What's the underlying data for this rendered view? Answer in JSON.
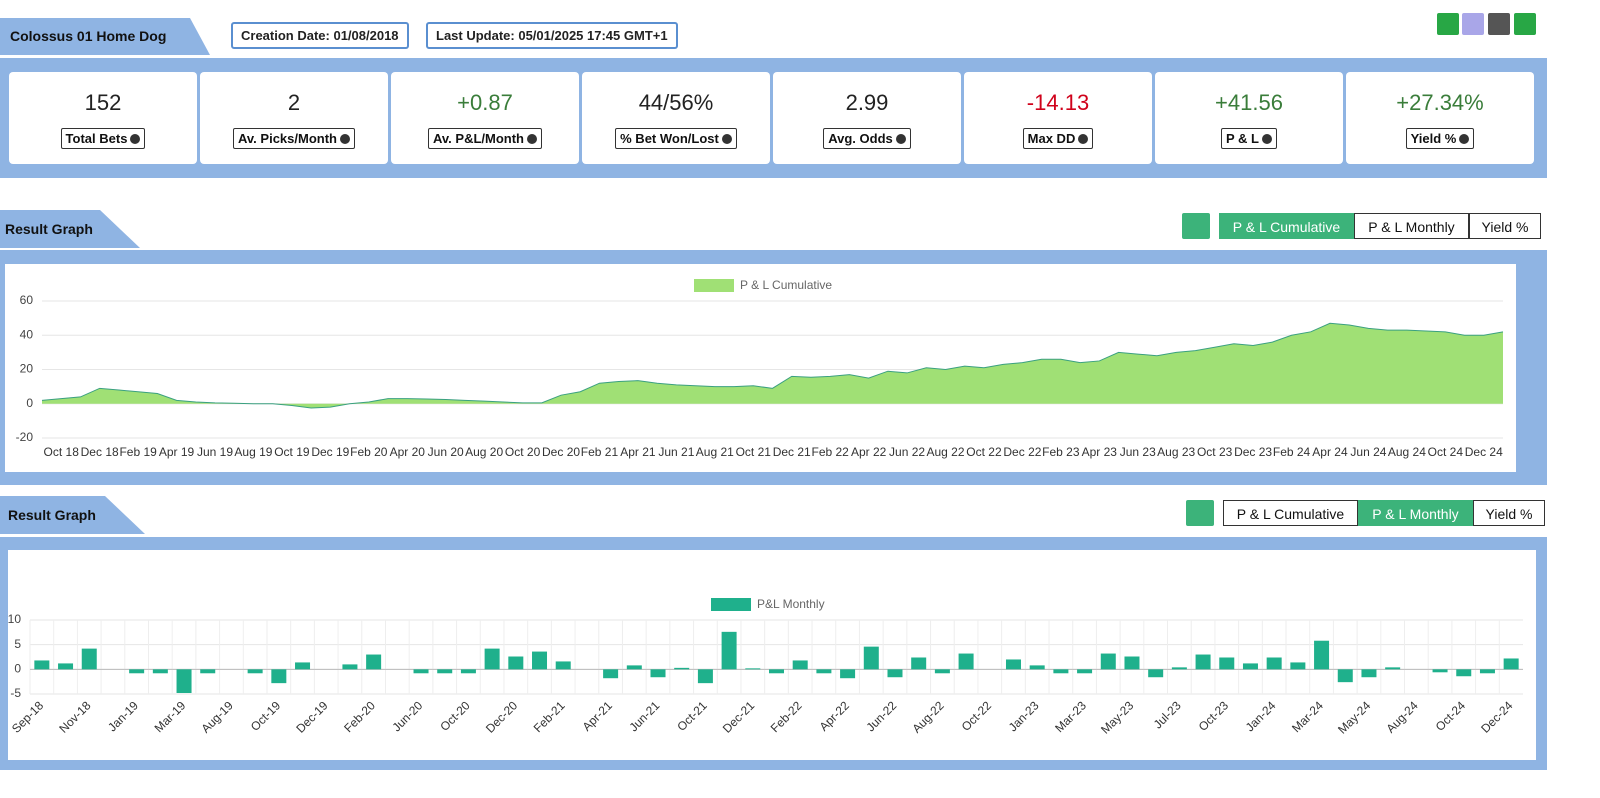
{
  "header": {
    "title": "Colossus 01 Home Dog",
    "creation": "Creation Date: 01/08/2018",
    "update": "Last Update: 05/01/2025 17:45 GMT+1"
  },
  "stats": [
    {
      "value": "152",
      "label": "Total Bets"
    },
    {
      "value": "2",
      "label": "Av. Picks/Month"
    },
    {
      "value": "+0.87",
      "label": "Av. P&L/Month"
    },
    {
      "value": "44/56%",
      "label": "% Bet Won/Lost"
    },
    {
      "value": "2.99",
      "label": "Avg. Odds"
    },
    {
      "value": "-14.13",
      "label": "Max DD"
    },
    {
      "value": "+41.56",
      "label": "P & L"
    },
    {
      "value": "+27.34%",
      "label": "Yield %"
    }
  ],
  "sections": [
    {
      "title": "Result Graph",
      "buttons": [
        "P & L Cumulative",
        "P & L Monthly",
        "Yield %"
      ],
      "active": 0
    },
    {
      "title": "Result Graph",
      "buttons": [
        "P & L Cumulative",
        "P & L Monthly",
        "Yield %"
      ],
      "active": 1
    }
  ],
  "chart_data": [
    {
      "type": "area",
      "categories": [
        null,
        "Oct 18",
        null,
        "Dec 18",
        null,
        "Feb 19",
        null,
        "Apr 19",
        null,
        "Jun 19",
        null,
        "Aug 19",
        null,
        "Oct 19",
        null,
        "Dec 19",
        null,
        "Feb 20",
        null,
        "Apr 20",
        null,
        "Jun 20",
        null,
        "Aug 20",
        null,
        "Oct 20",
        null,
        "Dec 20",
        null,
        "Feb 21",
        null,
        "Apr 21",
        null,
        "Jun 21",
        null,
        "Aug 21",
        null,
        "Oct 21",
        null,
        "Dec 21",
        null,
        "Feb 22",
        null,
        "Apr 22",
        null,
        "Jun 22",
        null,
        "Aug 22",
        null,
        "Oct 22",
        null,
        "Dec 22",
        null,
        "Feb 23",
        null,
        "Apr 23",
        null,
        "Jun 23",
        null,
        "Aug 23",
        null,
        "Oct 23",
        null,
        "Dec 23",
        null,
        "Feb 24",
        null,
        "Apr 24",
        null,
        "Jun 24",
        null,
        "Aug 24",
        null,
        "Oct 24",
        null,
        "Dec 24",
        null
      ],
      "series": [
        {
          "name": "P & L Cumulative",
          "color": "#a0e075",
          "values": [
            2,
            3,
            4,
            9,
            8,
            7,
            6,
            2,
            1,
            0.5,
            0.3,
            0,
            0,
            -1,
            -2.5,
            -2,
            0,
            1,
            3,
            3,
            2.8,
            2.5,
            2,
            1.5,
            1,
            0.5,
            0.5,
            5,
            7,
            12,
            13,
            13.5,
            12,
            11,
            10.5,
            10,
            10,
            10.5,
            9,
            16,
            15.5,
            16,
            17,
            15,
            19,
            18,
            21,
            20,
            22,
            21,
            23,
            24,
            26,
            26,
            24,
            25,
            30,
            29,
            28,
            30,
            31,
            33,
            35,
            34,
            36,
            40,
            42,
            47,
            46,
            44,
            43,
            43,
            42.5,
            42,
            40,
            40,
            42
          ]
        }
      ],
      "ylim": [
        -20,
        60
      ],
      "yticks": [
        -20,
        0,
        20,
        40,
        60
      ],
      "grid": true
    },
    {
      "type": "bar",
      "categories": [
        "Sep-18",
        null,
        "Nov-18",
        null,
        "Jan-19",
        null,
        "Mar-19",
        null,
        "Aug-19",
        null,
        "Oct-19",
        null,
        "Dec-19",
        null,
        "Feb-20",
        null,
        "Jun-20",
        null,
        "Oct-20",
        null,
        "Dec-20",
        null,
        "Feb-21",
        null,
        "Apr-21",
        null,
        "Jun-21",
        null,
        "Oct-21",
        null,
        "Dec-21",
        null,
        "Feb-22",
        null,
        "Apr-22",
        null,
        "Jun-22",
        null,
        "Aug-22",
        null,
        "Oct-22",
        null,
        "Jan-23",
        null,
        "Mar-23",
        null,
        "May-23",
        null,
        "Jul-23",
        null,
        "Oct-23",
        null,
        "Jan-24",
        null,
        "Mar-24",
        null,
        "May-24",
        null,
        "Aug-24",
        null,
        "Oct-24",
        null,
        "Dec-24"
      ],
      "series": [
        {
          "name": "P&L Monthly",
          "color": "#1fb08c",
          "values": [
            1.8,
            1.2,
            4.2,
            0,
            -0.8,
            -0.8,
            -4.8,
            -0.8,
            0,
            -0.8,
            -2.8,
            1.4,
            0,
            1.0,
            3.0,
            0,
            -0.8,
            -0.8,
            -0.8,
            4.2,
            2.6,
            3.6,
            1.6,
            0,
            -1.8,
            0.8,
            -1.6,
            0.3,
            -2.8,
            7.6,
            0.2,
            -0.8,
            1.8,
            -0.8,
            -1.8,
            4.6,
            -1.6,
            2.4,
            -0.8,
            3.2,
            0,
            2.0,
            0.8,
            -0.8,
            -0.8,
            3.2,
            2.6,
            -1.6,
            0.4,
            3.0,
            2.4,
            1.2,
            2.4,
            1.4,
            5.8,
            -2.6,
            -1.6,
            0.4,
            0,
            -0.6,
            -1.4,
            -0.8,
            2.2
          ]
        }
      ],
      "ylim": [
        -5,
        10
      ],
      "yticks": [
        -5,
        0,
        5,
        10
      ],
      "grid": true
    }
  ]
}
